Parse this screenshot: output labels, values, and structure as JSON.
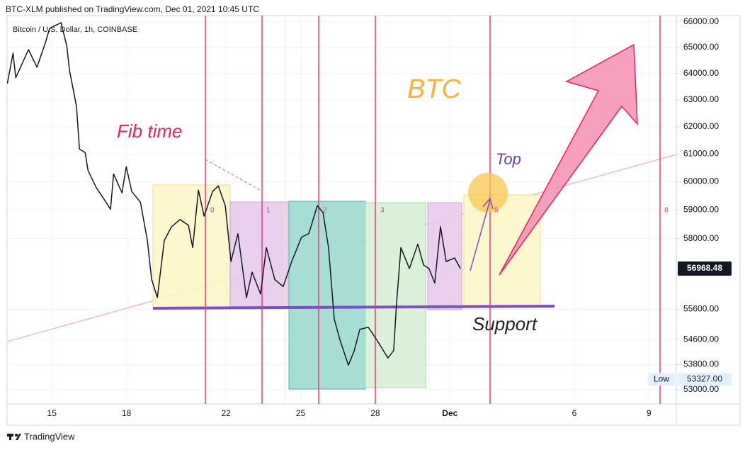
{
  "header": "BTC-XLM published on TradingView.com, Dec 01, 2021 10:45 UTC",
  "footer": "TradingView",
  "chart_data": {
    "type": "line",
    "log_scale": true,
    "grid": true,
    "series": [
      {
        "name": "Bitcoin / U.S. Dollar, 1h, COINBASE",
        "color": "#131722",
        "x": [
          13.21,
          13.44,
          13.55,
          14.06,
          14.4,
          14.74,
          14.91,
          15.2,
          15.37,
          15.6,
          15.71,
          15.99,
          16.11,
          16.34,
          16.45,
          16.79,
          17.08,
          17.36,
          17.48,
          17.82,
          17.99,
          18.21,
          18.56,
          18.84,
          19.01,
          19.24,
          19.52,
          19.81,
          20.15,
          20.49,
          20.66,
          20.89,
          21.12,
          21.46,
          21.69,
          21.97,
          22.2,
          22.48,
          22.82,
          23.05,
          23.39,
          23.62,
          23.96,
          24.3,
          24.64,
          25.04,
          25.33,
          25.67,
          25.9,
          26.12,
          26.35,
          26.58,
          26.92,
          27.15,
          27.38,
          27.72,
          28.06,
          28.51,
          28.74,
          28.85,
          29.03,
          29.37,
          29.71,
          29.94,
          30.16,
          30.39,
          30.62,
          30.85,
          31.19,
          31.42
        ],
        "values": [
          63620,
          64780,
          63840,
          64920,
          64240,
          65190,
          65750,
          65890,
          65970,
          65060,
          64110,
          62760,
          61180,
          61050,
          60410,
          59780,
          59400,
          59020,
          60280,
          59600,
          60540,
          59650,
          59270,
          57930,
          56600,
          55990,
          57930,
          58410,
          58660,
          58460,
          57690,
          59700,
          58780,
          59650,
          59850,
          59150,
          57210,
          58170,
          55990,
          56850,
          56110,
          57690,
          56600,
          56360,
          57210,
          58050,
          58170,
          59150,
          58900,
          57690,
          55280,
          54600,
          53780,
          54240,
          54940,
          55010,
          54600,
          54010,
          54250,
          55750,
          57690,
          56970,
          57810,
          57090,
          56970,
          56480,
          58410,
          57210,
          57330,
          56970
        ]
      }
    ],
    "xlim": [
      13.2,
      40.1
    ],
    "xticks": [
      15,
      18,
      22,
      25,
      28,
      {
        "value": 31,
        "label": "Dec"
      },
      {
        "value": 36,
        "label": "6"
      },
      {
        "value": 39,
        "label": "9"
      }
    ],
    "ylim": [
      52550,
      66250
    ],
    "yticks": [
      {
        "value": 66000,
        "label": "66000.00"
      },
      {
        "value": 65000,
        "label": "65000.00"
      },
      {
        "value": 64000,
        "label": "64000.00"
      },
      {
        "value": 63000,
        "label": "63000.00"
      },
      {
        "value": 62000,
        "label": "62000.00"
      },
      {
        "value": 61000,
        "label": "61000.00"
      },
      {
        "value": 60000,
        "label": "60000.00"
      },
      {
        "value": 59000,
        "label": "59000.00"
      },
      {
        "value": 58000,
        "label": "58000.00"
      },
      {
        "value": 55600,
        "label": "55600.00"
      },
      {
        "value": 54600,
        "label": "54600.00"
      },
      {
        "value": 53800,
        "label": "53800.00"
      },
      {
        "value": 53000,
        "label": "53000.00"
      }
    ],
    "last_price": {
      "value": 56968.48,
      "label": "56968.48"
    },
    "low": {
      "name": "Low",
      "value": 53327,
      "label": "53327.00"
    },
    "annotations": {
      "fib_time": "Fib time",
      "btc": "BTC",
      "top": "Top",
      "support": "Support"
    },
    "fib_labels": [
      "0",
      "1",
      "2",
      "3",
      "5",
      "8"
    ]
  }
}
